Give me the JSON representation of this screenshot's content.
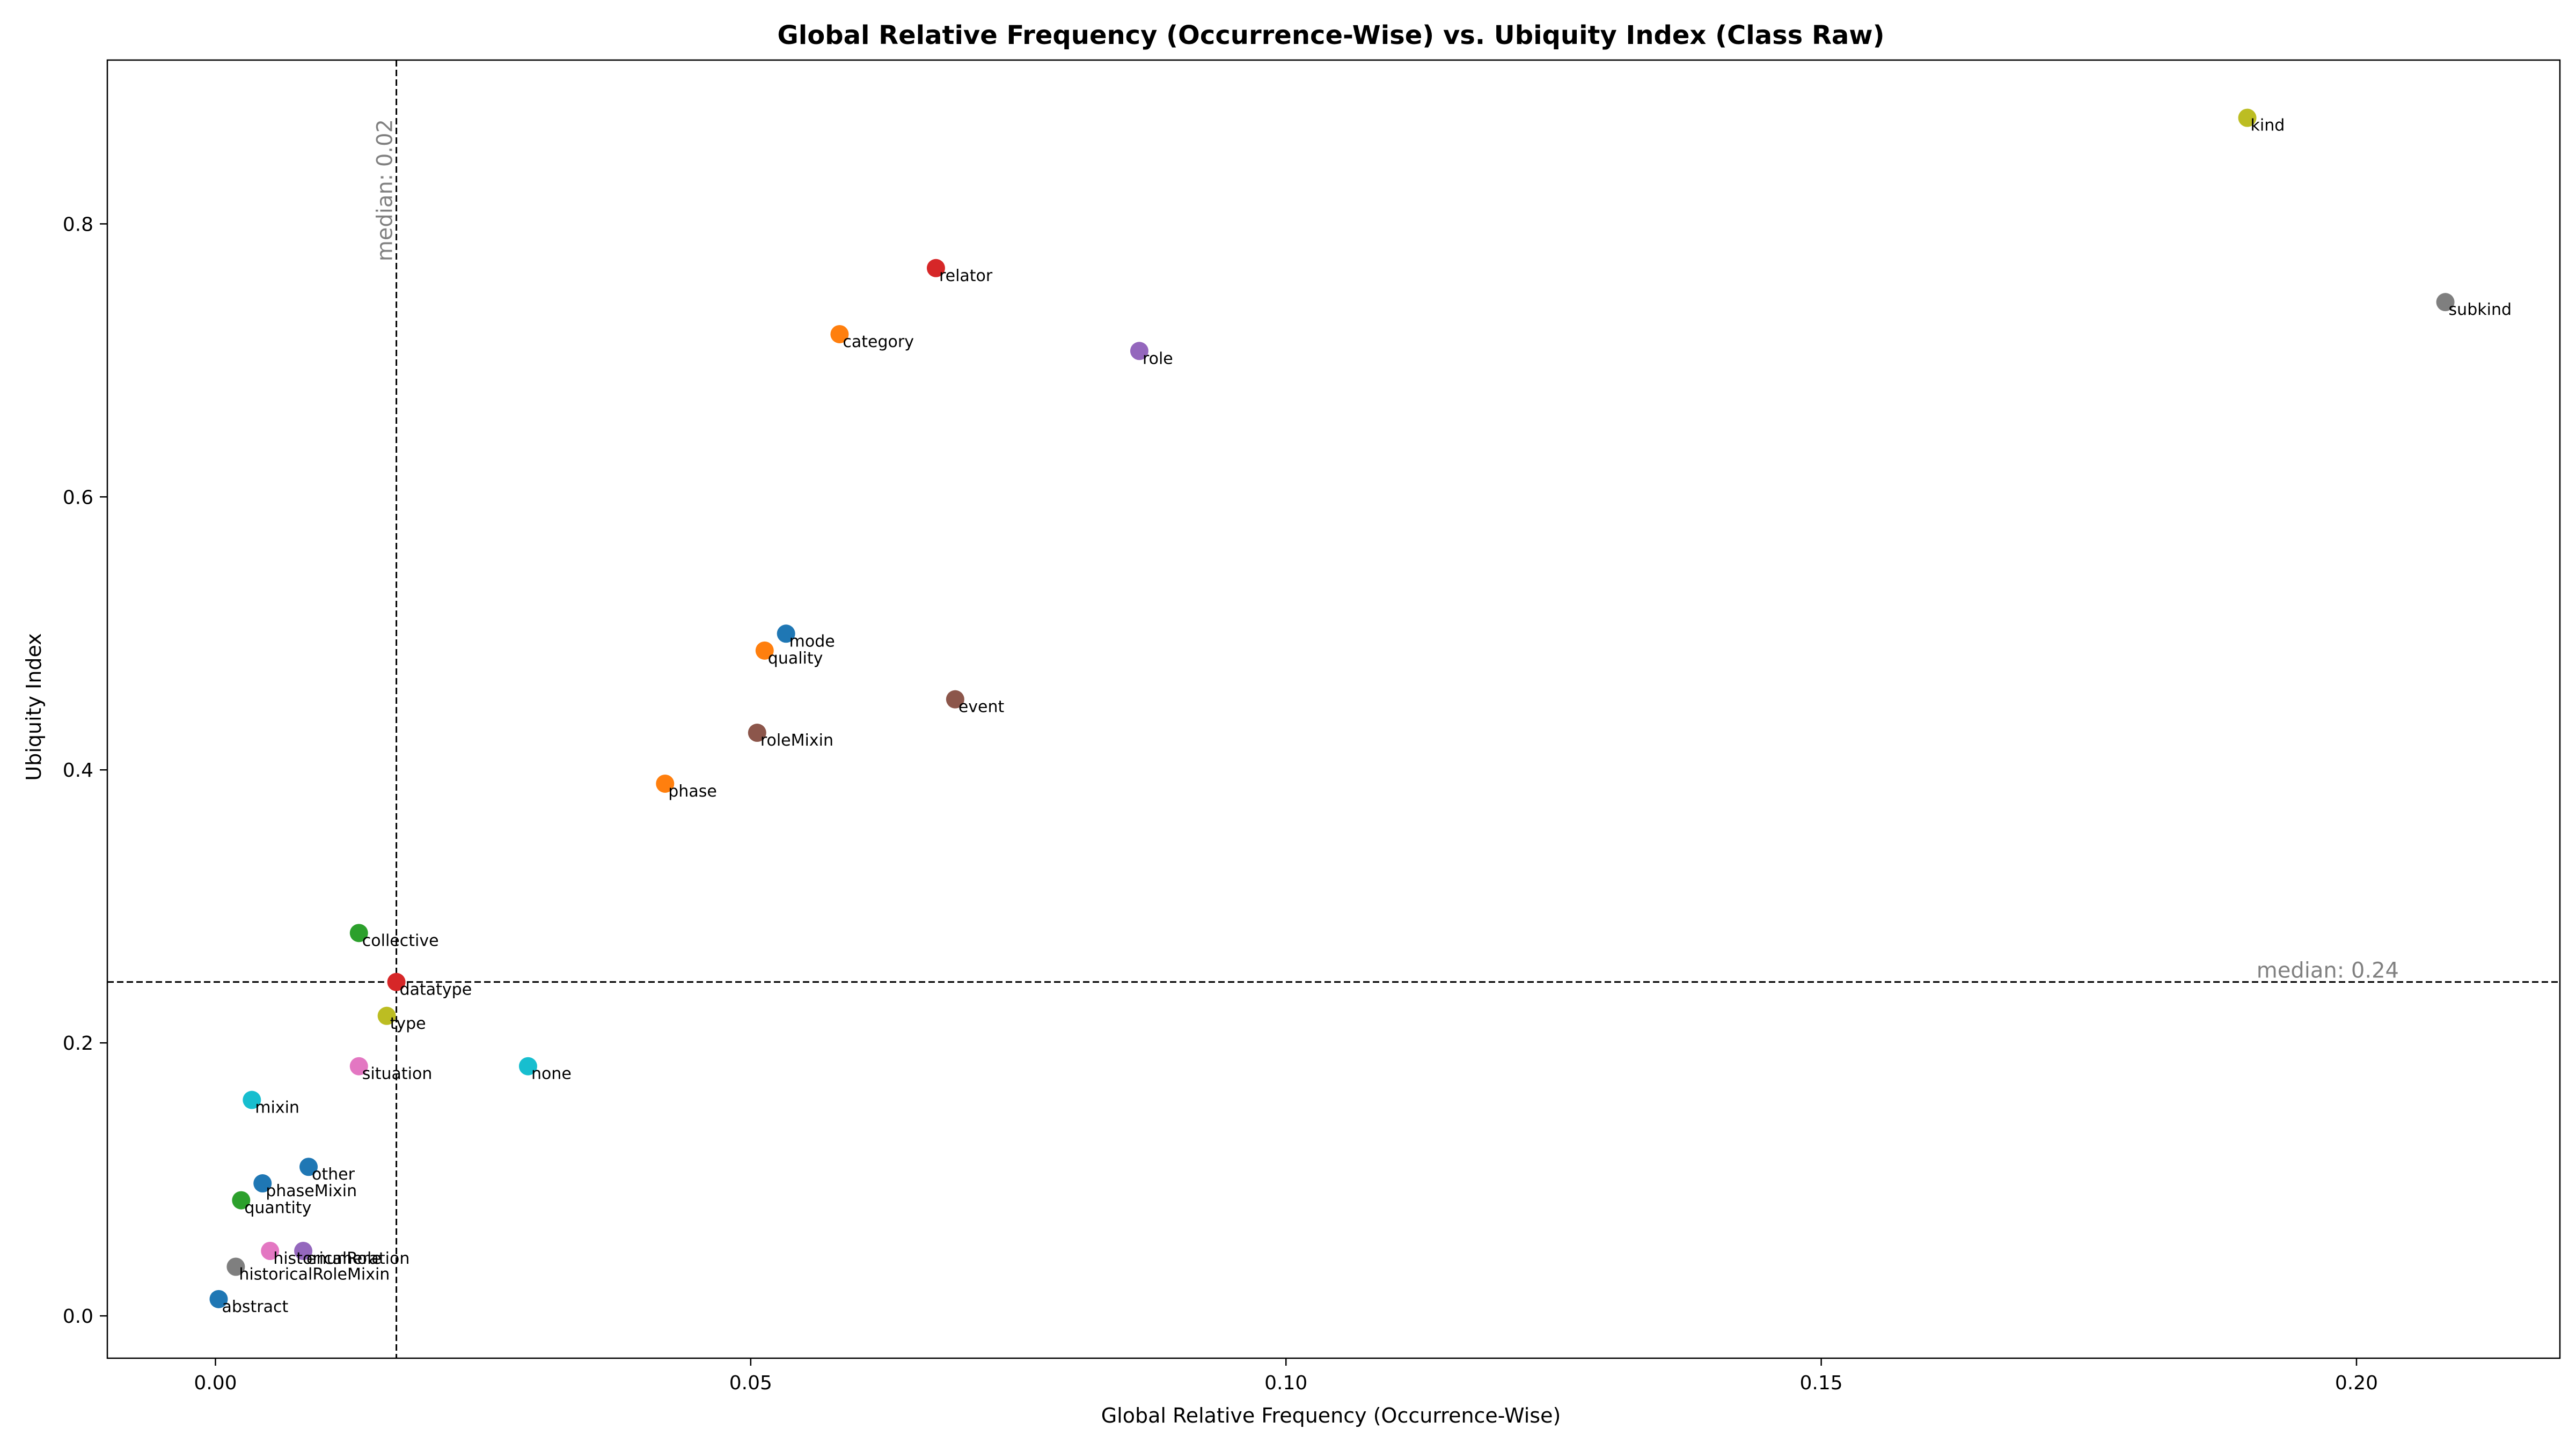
{
  "chart_data": {
    "type": "scatter",
    "title": "Global Relative Frequency (Occurrence-Wise) vs. Ubiquity Index (Class Raw)",
    "xlabel": "Global Relative Frequency (Occurrence-Wise)",
    "ylabel": "Ubiquity Index",
    "xlim": [
      -0.0101,
      0.219
    ],
    "ylim": [
      -0.031,
      0.92
    ],
    "xticks": [
      {
        "value": 0.0,
        "label": "0.00"
      },
      {
        "value": 0.05,
        "label": "0.05"
      },
      {
        "value": 0.1,
        "label": "0.10"
      },
      {
        "value": 0.15,
        "label": "0.15"
      },
      {
        "value": 0.2,
        "label": "0.20"
      }
    ],
    "yticks": [
      {
        "value": 0.0,
        "label": "0.0"
      },
      {
        "value": 0.2,
        "label": "0.2"
      },
      {
        "value": 0.4,
        "label": "0.4"
      },
      {
        "value": 0.6,
        "label": "0.6"
      },
      {
        "value": 0.8,
        "label": "0.8"
      }
    ],
    "grid": false,
    "median_x": {
      "value": 0.0169,
      "label": "median: 0.02"
    },
    "median_y": {
      "value": 0.2446,
      "label": "median: 0.24"
    },
    "points": [
      {
        "label": "kind",
        "x": 0.1898,
        "y": 0.8777,
        "color": "#bcbd22"
      },
      {
        "label": "subkind",
        "x": 0.2083,
        "y": 0.7427,
        "color": "#7f7f7f"
      },
      {
        "label": "relator",
        "x": 0.0673,
        "y": 0.7676,
        "color": "#d62728"
      },
      {
        "label": "category",
        "x": 0.0583,
        "y": 0.7192,
        "color": "#ff7f0e"
      },
      {
        "label": "role",
        "x": 0.0863,
        "y": 0.7069,
        "color": "#9467bd"
      },
      {
        "label": "mode",
        "x": 0.0533,
        "y": 0.4998,
        "color": "#1f77b4"
      },
      {
        "label": "quality",
        "x": 0.0513,
        "y": 0.4874,
        "color": "#ff7f0e"
      },
      {
        "label": "event",
        "x": 0.0691,
        "y": 0.4517,
        "color": "#8c564b"
      },
      {
        "label": "roleMixin",
        "x": 0.0506,
        "y": 0.4272,
        "color": "#8c564b"
      },
      {
        "label": "phase",
        "x": 0.042,
        "y": 0.3899,
        "color": "#ff7f0e"
      },
      {
        "label": "collective",
        "x": 0.0134,
        "y": 0.2805,
        "color": "#2ca02c"
      },
      {
        "label": "datatype",
        "x": 0.0169,
        "y": 0.2446,
        "color": "#d62728"
      },
      {
        "label": "type",
        "x": 0.016,
        "y": 0.2198,
        "color": "#bcbd22"
      },
      {
        "label": "situation",
        "x": 0.0134,
        "y": 0.1829,
        "color": "#e377c2"
      },
      {
        "label": "none",
        "x": 0.0292,
        "y": 0.1829,
        "color": "#17becf"
      },
      {
        "label": "mixin",
        "x": 0.0034,
        "y": 0.1582,
        "color": "#17becf"
      },
      {
        "label": "other",
        "x": 0.0087,
        "y": 0.1092,
        "color": "#1f77b4"
      },
      {
        "label": "phaseMixin",
        "x": 0.0044,
        "y": 0.0971,
        "color": "#1f77b4"
      },
      {
        "label": "quantity",
        "x": 0.0024,
        "y": 0.0847,
        "color": "#2ca02c"
      },
      {
        "label": "enumeration",
        "x": 0.0082,
        "y": 0.0476,
        "color": "#9467bd"
      },
      {
        "label": "historicalRole",
        "x": 0.0051,
        "y": 0.0476,
        "color": "#e377c2"
      },
      {
        "label": "historicalRoleMixin",
        "x": 0.0019,
        "y": 0.036,
        "color": "#7f7f7f"
      },
      {
        "label": "abstract",
        "x": 0.0003,
        "y": 0.0123,
        "color": "#1f77b4"
      }
    ]
  }
}
